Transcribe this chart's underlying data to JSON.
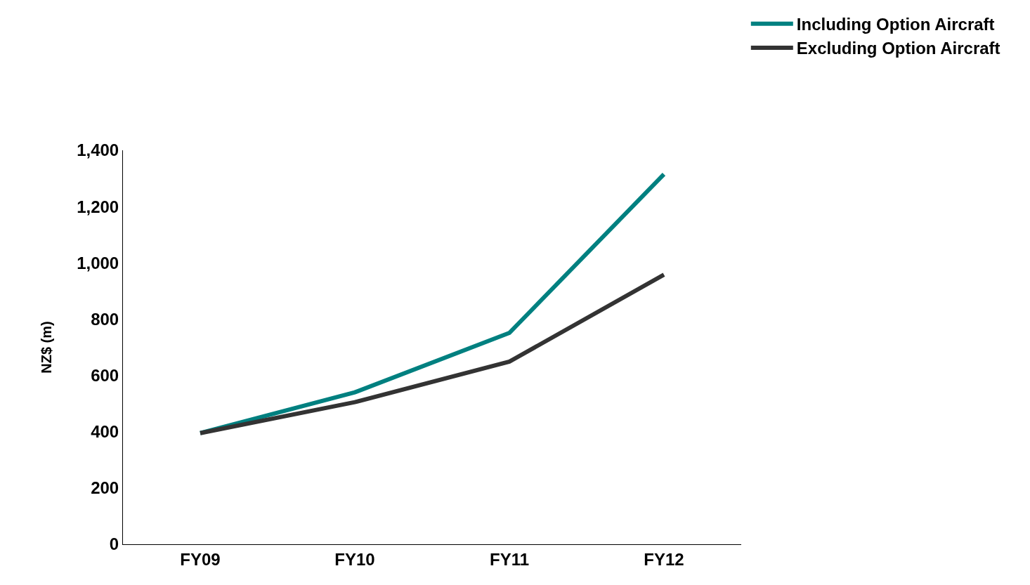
{
  "chart_data": {
    "type": "line",
    "ylabel": "NZ$ (m)",
    "categories": [
      "FY09",
      "FY10",
      "FY11",
      "FY12"
    ],
    "series": [
      {
        "name": "Including Option Aircraft",
        "color": "#008080",
        "values": [
          395,
          540,
          751,
          1315
        ]
      },
      {
        "name": "Excluding Option Aircraft",
        "color": "#333333",
        "values": [
          395,
          505,
          649,
          958
        ]
      }
    ],
    "ylim": [
      0,
      1400
    ],
    "yticks": [
      0,
      200,
      400,
      600,
      800,
      {
        "value": 1000,
        "label": "1,000"
      },
      {
        "value": 1200,
        "label": "1,200"
      },
      {
        "value": 1400,
        "label": "1,400"
      }
    ],
    "grid": false,
    "legend": "top right",
    "marker": "none",
    "line_style": "solid"
  }
}
